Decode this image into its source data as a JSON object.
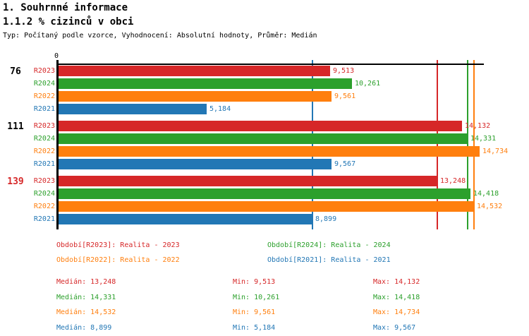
{
  "header": {
    "section_title": "1. Souhrnné informace",
    "chart_title": "1.1.2 % cizinců v obci",
    "meta": "Typ: Počítaný podle vzorce, Vyhodnocení: Absolutní hodnoty, Průměr: Medián"
  },
  "colors": {
    "R2023": "#d62728",
    "R2024": "#2ca02c",
    "R2022": "#ff7f0e",
    "R2021": "#2277b5",
    "axis": "#000000",
    "group_label_default": "#000000",
    "group_label_highlight": "#d62728"
  },
  "chart_data": {
    "type": "bar",
    "orientation": "horizontal",
    "x_axis": {
      "origin_label": "0",
      "xlim": [
        0,
        14888
      ],
      "grid": false
    },
    "series_order": [
      "R2023",
      "R2024",
      "R2022",
      "R2021"
    ],
    "groups": [
      {
        "label": "76",
        "highlight": false,
        "values": {
          "R2023": 9513,
          "R2024": 10261,
          "R2022": 9561,
          "R2021": 5184
        },
        "value_labels": {
          "R2023": "9,513",
          "R2024": "10,261",
          "R2022": "9,561",
          "R2021": "5,184"
        }
      },
      {
        "label": "111",
        "highlight": false,
        "values": {
          "R2023": 14132,
          "R2024": 14331,
          "R2022": 14734,
          "R2021": 9567
        },
        "value_labels": {
          "R2023": "14,132",
          "R2024": "14,331",
          "R2022": "14,734",
          "R2021": "9,567"
        }
      },
      {
        "label": "139",
        "highlight": true,
        "values": {
          "R2023": 13248,
          "R2024": 14418,
          "R2022": 14532,
          "R2021": 8899
        },
        "value_labels": {
          "R2023": "13,248",
          "R2024": "14,418",
          "R2022": "14,532",
          "R2021": "8,899"
        }
      }
    ],
    "median_lines": {
      "R2023": 13248,
      "R2024": 14331,
      "R2022": 14532,
      "R2021": 8899
    }
  },
  "legend": {
    "items": [
      {
        "series": "R2023",
        "label": "Období[R2023]: Realita - 2023",
        "column": 0,
        "row": 0
      },
      {
        "series": "R2024",
        "label": "Období[R2024]: Realita - 2024",
        "column": 1,
        "row": 0
      },
      {
        "series": "R2022",
        "label": "Období[R2022]: Realita - 2022",
        "column": 0,
        "row": 1
      },
      {
        "series": "R2021",
        "label": "Období[R2021]: Realita - 2021",
        "column": 1,
        "row": 1
      }
    ]
  },
  "stats": {
    "labels": {
      "median": "Medián",
      "min": "Min",
      "max": "Max"
    },
    "rows": [
      {
        "series": "R2023",
        "median": "13,248",
        "min": "9,513",
        "max": "14,132"
      },
      {
        "series": "R2024",
        "median": "14,331",
        "min": "10,261",
        "max": "14,418"
      },
      {
        "series": "R2022",
        "median": "14,532",
        "min": "9,561",
        "max": "14,734"
      },
      {
        "series": "R2021",
        "median": "8,899",
        "min": "5,184",
        "max": "9,567"
      }
    ]
  }
}
